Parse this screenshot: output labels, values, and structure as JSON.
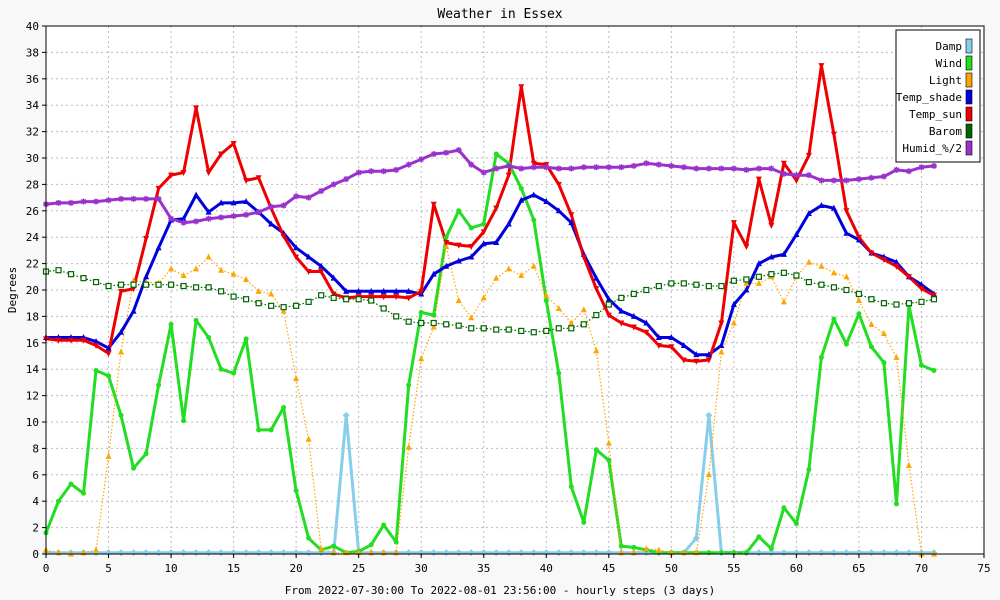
{
  "chart_data": {
    "type": "line",
    "title": "Weather in Essex",
    "xlabel": "From 2022-07-30:00 To 2022-08-01 23:56:00 - hourly steps (3 days)",
    "ylabel": "Degrees",
    "xlim": [
      0,
      75
    ],
    "ylim": [
      0,
      40
    ],
    "x_ticks": [
      0,
      5,
      10,
      15,
      20,
      25,
      30,
      35,
      40,
      45,
      50,
      55,
      60,
      65,
      70,
      75
    ],
    "y_ticks": [
      0,
      2,
      4,
      6,
      8,
      10,
      12,
      14,
      16,
      18,
      20,
      22,
      24,
      26,
      28,
      30,
      32,
      34,
      36,
      38,
      40
    ],
    "grid": true,
    "legend_position": "top-right",
    "series": [
      {
        "name": "Damp",
        "color": "#87ceeb",
        "style": "solid",
        "marker": "diamond",
        "values": [
          0.1,
          0.1,
          0.1,
          0.1,
          0.1,
          0.1,
          0.1,
          0.1,
          0.1,
          0.1,
          0.1,
          0.1,
          0.1,
          0.1,
          0.1,
          0.1,
          0.1,
          0.1,
          0.1,
          0.1,
          0.1,
          0.1,
          0.1,
          0.1,
          10.5,
          0.1,
          0.1,
          0.1,
          0.1,
          0.1,
          0.1,
          0.1,
          0.1,
          0.1,
          0.1,
          0.1,
          0.1,
          0.1,
          0.1,
          0.1,
          0.1,
          0.1,
          0.1,
          0.1,
          0.1,
          0.1,
          0.1,
          0.1,
          0.1,
          0.1,
          0.1,
          0.1,
          1.2,
          10.5,
          0.1,
          0.1,
          0.1,
          0.1,
          0.1,
          0.1,
          0.1,
          0.1,
          0.1,
          0.1,
          0.1,
          0.1,
          0.1,
          0.1,
          0.1,
          0.1,
          0.1,
          0.1
        ]
      },
      {
        "name": "Wind",
        "color": "#22dd22",
        "style": "solid",
        "marker": "circle",
        "values": [
          1.6,
          4.0,
          5.3,
          4.6,
          13.9,
          13.5,
          10.5,
          6.5,
          7.6,
          12.8,
          17.4,
          10.1,
          17.7,
          16.4,
          14.0,
          13.7,
          16.3,
          9.4,
          9.4,
          11.1,
          4.8,
          1.2,
          0.3,
          0.6,
          0.1,
          0.2,
          0.7,
          2.2,
          0.9,
          12.8,
          18.3,
          18.1,
          24.0,
          26.0,
          24.7,
          25.0,
          30.3,
          29.6,
          27.7,
          25.3,
          19.2,
          13.7,
          5.1,
          2.4,
          7.9,
          7.1,
          0.6,
          0.5,
          0.3,
          0.1,
          0.1,
          0.1,
          0.1,
          0.1,
          0.1,
          0.1,
          0.1,
          1.3,
          0.4,
          3.5,
          2.3,
          6.4,
          14.9,
          17.8,
          15.9,
          18.2,
          15.7,
          14.5,
          3.8,
          18.8,
          14.3,
          13.9
        ]
      },
      {
        "name": "Light",
        "color": "#ffa500",
        "style": "dotted",
        "marker": "triangle-up",
        "values": [
          0.3,
          0.1,
          0.0,
          0.1,
          0.3,
          7.4,
          15.3,
          20.7,
          20.6,
          20.5,
          21.6,
          21.1,
          21.6,
          22.5,
          21.5,
          21.2,
          20.8,
          19.9,
          19.7,
          18.4,
          13.3,
          8.7,
          0.4,
          0.1,
          0.1,
          0.1,
          0.1,
          0.1,
          0.1,
          8.1,
          14.8,
          17.2,
          23.3,
          19.2,
          17.9,
          19.4,
          20.9,
          21.6,
          21.1,
          21.8,
          19.6,
          18.6,
          17.5,
          18.5,
          15.4,
          8.4,
          0.1,
          0.1,
          0.4,
          0.3,
          0.1,
          0.1,
          0.1,
          6.0,
          15.3,
          17.5,
          20.5,
          20.5,
          21.0,
          19.1,
          21.0,
          22.1,
          21.8,
          21.3,
          21.0,
          19.2,
          17.4,
          16.7,
          14.9,
          6.7,
          0.0,
          0.0
        ]
      },
      {
        "name": "Temp_shade",
        "color": "#0000dd",
        "style": "solid",
        "marker": "triangle-up",
        "values": [
          16.4,
          16.4,
          16.4,
          16.4,
          16.1,
          15.6,
          16.8,
          18.4,
          21.0,
          23.2,
          25.3,
          25.4,
          27.2,
          25.9,
          26.6,
          26.6,
          26.7,
          25.9,
          25.0,
          24.3,
          23.2,
          22.5,
          21.8,
          20.9,
          19.9,
          19.9,
          19.9,
          19.9,
          19.9,
          19.9,
          19.7,
          21.2,
          21.8,
          22.2,
          22.5,
          23.5,
          23.6,
          25.0,
          26.8,
          27.2,
          26.7,
          26.0,
          25.1,
          22.7,
          20.9,
          19.3,
          18.4,
          18.0,
          17.5,
          16.4,
          16.4,
          15.8,
          15.1,
          15.1,
          15.8,
          18.9,
          20.0,
          22.0,
          22.5,
          22.7,
          24.2,
          25.8,
          26.4,
          26.2,
          24.3,
          23.8,
          22.8,
          22.5,
          22.1,
          21.0,
          20.4,
          19.7
        ]
      },
      {
        "name": "Temp_sun",
        "color": "#ee0000",
        "style": "solid",
        "marker": "triangle-down",
        "values": [
          16.3,
          16.2,
          16.2,
          16.2,
          15.8,
          15.2,
          19.9,
          20.1,
          23.9,
          27.7,
          28.7,
          28.9,
          33.8,
          28.9,
          30.3,
          31.1,
          28.3,
          28.5,
          26.2,
          24.1,
          22.5,
          21.4,
          21.4,
          19.7,
          19.4,
          19.5,
          19.5,
          19.5,
          19.5,
          19.4,
          19.9,
          26.5,
          23.6,
          23.4,
          23.3,
          24.4,
          26.2,
          28.7,
          35.4,
          29.6,
          29.5,
          28.0,
          25.7,
          22.5,
          20.1,
          18.1,
          17.5,
          17.2,
          16.8,
          15.8,
          15.7,
          14.7,
          14.6,
          14.7,
          17.5,
          25.1,
          23.3,
          28.4,
          24.9,
          29.6,
          28.3,
          30.2,
          37.0,
          31.8,
          26.0,
          24.0,
          22.8,
          22.3,
          21.8,
          21.0,
          20.1,
          19.6
        ]
      },
      {
        "name": "Barom",
        "color": "#006400",
        "style": "dotted",
        "marker": "square",
        "values": [
          21.4,
          21.5,
          21.2,
          20.9,
          20.6,
          20.3,
          20.4,
          20.4,
          20.4,
          20.4,
          20.4,
          20.3,
          20.2,
          20.2,
          19.9,
          19.5,
          19.3,
          19.0,
          18.8,
          18.7,
          18.8,
          19.1,
          19.6,
          19.4,
          19.3,
          19.3,
          19.2,
          18.6,
          18.0,
          17.6,
          17.5,
          17.5,
          17.4,
          17.3,
          17.1,
          17.1,
          17.0,
          17.0,
          16.9,
          16.8,
          16.9,
          17.1,
          17.1,
          17.4,
          18.1,
          18.9,
          19.4,
          19.7,
          20.0,
          20.3,
          20.5,
          20.5,
          20.4,
          20.3,
          20.3,
          20.7,
          20.8,
          21.0,
          21.2,
          21.3,
          21.1,
          20.6,
          20.4,
          20.2,
          20.0,
          19.7,
          19.3,
          19.0,
          18.9,
          19.0,
          19.1,
          19.3
        ]
      },
      {
        "name": "Humid_%/2",
        "color": "#9932cc",
        "style": "solid",
        "marker": "star",
        "values": [
          26.5,
          26.6,
          26.6,
          26.7,
          26.7,
          26.8,
          26.9,
          26.9,
          26.9,
          26.9,
          25.4,
          25.1,
          25.2,
          25.4,
          25.5,
          25.6,
          25.7,
          25.9,
          26.3,
          26.4,
          27.1,
          27.0,
          27.5,
          28.0,
          28.4,
          28.9,
          29.0,
          29.0,
          29.1,
          29.5,
          29.9,
          30.3,
          30.4,
          30.6,
          29.5,
          28.9,
          29.2,
          29.4,
          29.2,
          29.3,
          29.3,
          29.2,
          29.2,
          29.3,
          29.3,
          29.3,
          29.3,
          29.4,
          29.6,
          29.5,
          29.4,
          29.3,
          29.2,
          29.2,
          29.2,
          29.2,
          29.1,
          29.2,
          29.2,
          28.8,
          28.7,
          28.7,
          28.3,
          28.3,
          28.3,
          28.4,
          28.5,
          28.6,
          29.1,
          29.0,
          29.3,
          29.4
        ]
      }
    ]
  }
}
